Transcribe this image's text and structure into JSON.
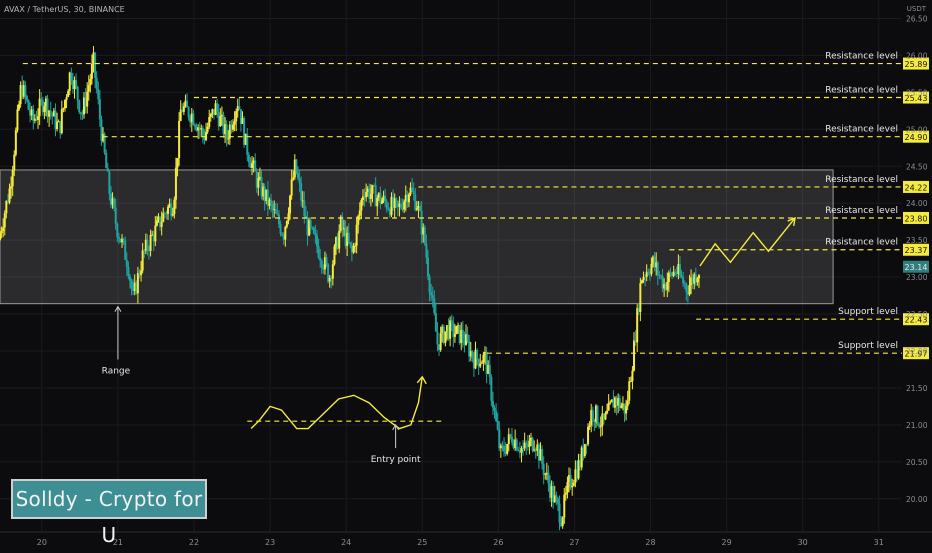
{
  "header": {
    "symbol_line": "AVAX / TetherUS, 30, BINANCE",
    "currency": "USDT"
  },
  "watermark": {
    "text": "Solldy - Crypto for U"
  },
  "colors": {
    "background": "#0c0c0e",
    "bull": "#f5eb3c",
    "bear": "#21a3a0",
    "level_line": "#f5eb3c",
    "range_box": "rgba(255,255,255,0.13)",
    "axis_text": "#8a8d93",
    "label_text": "#e8e8e8"
  },
  "chart_data": {
    "type": "candlestick",
    "symbol": "AVAX / TetherUS",
    "interval": "30",
    "exchange": "BINANCE",
    "y_unit": "USDT",
    "ylim": [
      19.55,
      26.75
    ],
    "xlim_days": [
      19.45,
      31.7
    ],
    "y_ticks": [
      20.0,
      20.5,
      21.0,
      21.5,
      22.0,
      22.5,
      23.0,
      23.5,
      24.0,
      24.5,
      25.0,
      25.5,
      26.0,
      26.5
    ],
    "x_ticks": [
      "20",
      "21",
      "22",
      "23",
      "24",
      "25",
      "26",
      "27",
      "28",
      "29",
      "30",
      "31"
    ],
    "last_price": 23.14,
    "levels": [
      {
        "label": "Resistance level",
        "value": 25.89,
        "start": 19.75
      },
      {
        "label": "Resistance level",
        "value": 25.43,
        "start": 22.0
      },
      {
        "label": "Resistance level",
        "value": 24.9,
        "start": 20.8
      },
      {
        "label": "Resistance level",
        "value": 24.22,
        "start": 24.95
      },
      {
        "label": "Resistance level",
        "value": 23.8,
        "start": 22.0
      },
      {
        "label": "Resistance level",
        "value": 23.37,
        "start": 28.25
      },
      {
        "label": "Support level",
        "value": 22.43,
        "start": 28.6
      },
      {
        "label": "Support level",
        "value": 21.97,
        "start": 25.85
      }
    ],
    "range_box": {
      "from": 19.45,
      "to": 30.4,
      "low": 22.64,
      "high": 24.45
    },
    "annotations": [
      {
        "text": "Range",
        "x": 21.0,
        "y": 21.75
      },
      {
        "text": "Entry point",
        "x": 24.65,
        "y": 20.55
      }
    ],
    "entry_line": {
      "from": 22.7,
      "to": 25.3,
      "value": 21.05
    },
    "candle_path": [
      [
        19.45,
        23.5
      ],
      [
        19.6,
        24.2
      ],
      [
        19.75,
        25.6
      ],
      [
        19.9,
        25.1
      ],
      [
        20.05,
        25.4
      ],
      [
        20.25,
        25.0
      ],
      [
        20.4,
        25.8
      ],
      [
        20.55,
        25.2
      ],
      [
        20.7,
        25.9
      ],
      [
        20.8,
        25.0
      ],
      [
        20.9,
        24.2
      ],
      [
        21.0,
        23.7
      ],
      [
        21.15,
        23.2
      ],
      [
        21.22,
        22.7
      ],
      [
        21.35,
        23.3
      ],
      [
        21.5,
        23.6
      ],
      [
        21.65,
        23.9
      ],
      [
        21.75,
        24.0
      ],
      [
        21.85,
        25.3
      ],
      [
        22.0,
        25.2
      ],
      [
        22.15,
        24.9
      ],
      [
        22.3,
        25.3
      ],
      [
        22.45,
        24.9
      ],
      [
        22.6,
        25.4
      ],
      [
        22.7,
        24.8
      ],
      [
        22.85,
        24.3
      ],
      [
        23.0,
        24.0
      ],
      [
        23.2,
        23.6
      ],
      [
        23.35,
        24.5
      ],
      [
        23.5,
        23.7
      ],
      [
        23.65,
        23.4
      ],
      [
        23.8,
        23.0
      ],
      [
        23.95,
        23.7
      ],
      [
        24.1,
        23.3
      ],
      [
        24.25,
        24.2
      ],
      [
        24.4,
        24.1
      ],
      [
        24.55,
        24.0
      ],
      [
        24.7,
        23.9
      ],
      [
        24.85,
        24.2
      ],
      [
        24.95,
        24.0
      ],
      [
        25.05,
        23.5
      ],
      [
        25.12,
        22.9
      ],
      [
        25.22,
        22.1
      ],
      [
        25.35,
        22.3
      ],
      [
        25.55,
        22.2
      ],
      [
        25.7,
        21.9
      ],
      [
        25.85,
        21.9
      ],
      [
        25.95,
        21.3
      ],
      [
        26.05,
        20.6
      ],
      [
        26.2,
        20.85
      ],
      [
        26.35,
        20.65
      ],
      [
        26.5,
        20.8
      ],
      [
        26.65,
        20.3
      ],
      [
        26.75,
        20.0
      ],
      [
        26.85,
        19.75
      ],
      [
        26.95,
        20.2
      ],
      [
        27.1,
        20.5
      ],
      [
        27.25,
        21.2
      ],
      [
        27.4,
        21.0
      ],
      [
        27.55,
        21.35
      ],
      [
        27.7,
        21.2
      ],
      [
        27.8,
        22.0
      ],
      [
        27.9,
        23.0
      ],
      [
        28.05,
        23.2
      ],
      [
        28.2,
        22.9
      ],
      [
        28.35,
        23.1
      ],
      [
        28.5,
        22.85
      ],
      [
        28.65,
        23.1
      ]
    ],
    "projection_path": [
      [
        28.65,
        23.15
      ],
      [
        28.85,
        23.45
      ],
      [
        29.05,
        23.2
      ],
      [
        29.35,
        23.6
      ],
      [
        29.55,
        23.35
      ],
      [
        29.9,
        23.8
      ]
    ],
    "entry_wave_path": [
      [
        22.75,
        20.95
      ],
      [
        22.85,
        21.05
      ],
      [
        23.0,
        21.25
      ],
      [
        23.15,
        21.2
      ],
      [
        23.35,
        20.95
      ],
      [
        23.5,
        20.95
      ],
      [
        23.65,
        21.1
      ],
      [
        23.9,
        21.35
      ],
      [
        24.1,
        21.4
      ],
      [
        24.3,
        21.3
      ],
      [
        24.5,
        21.1
      ],
      [
        24.7,
        20.95
      ],
      [
        24.85,
        21.0
      ],
      [
        24.95,
        21.3
      ],
      [
        25.0,
        21.65
      ]
    ]
  }
}
